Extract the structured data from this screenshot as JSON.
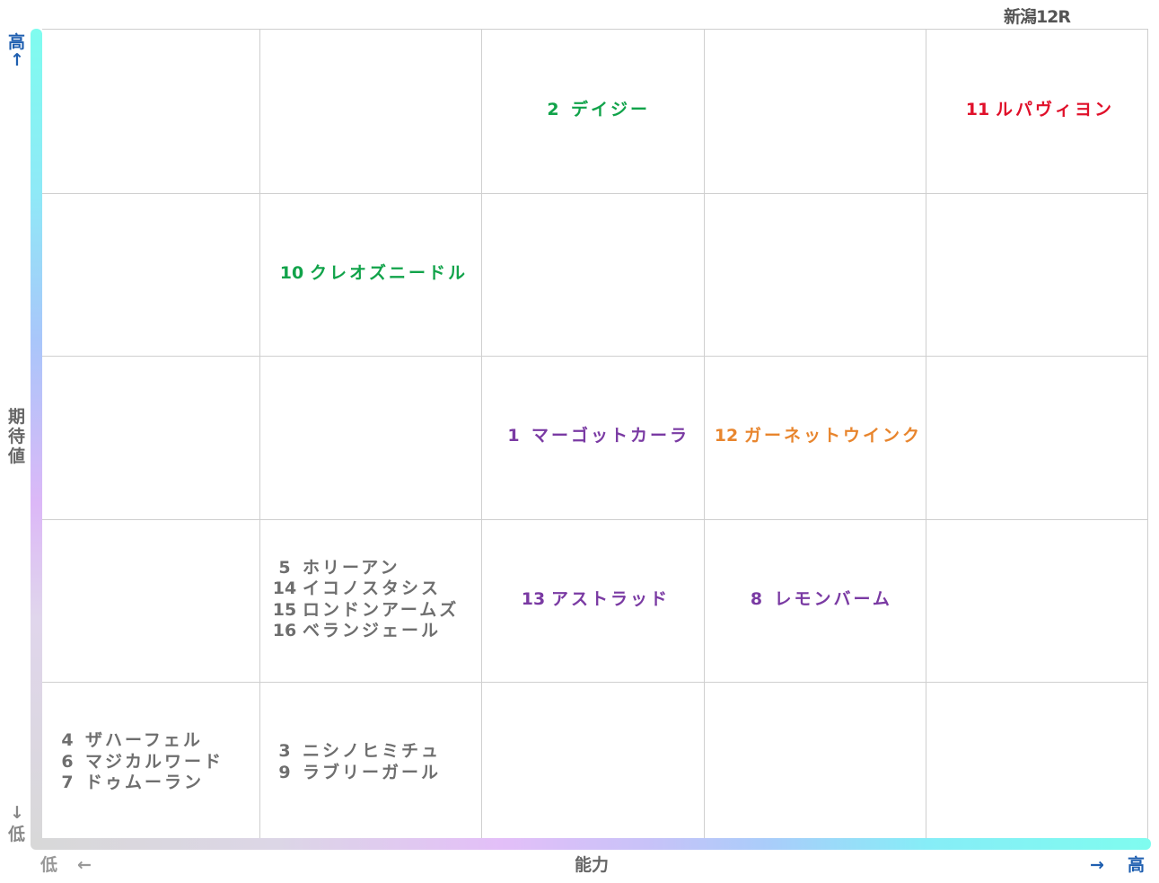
{
  "race": {
    "title": "新潟12R"
  },
  "axes": {
    "y_label": "期待値",
    "y_high": "高",
    "y_high_arrow": "↑",
    "y_low_arrow": "↓",
    "y_low": "低",
    "x_label": "能力",
    "x_low": "低",
    "x_low_arrow": "←",
    "x_high_arrow": "→",
    "x_high": "高"
  },
  "colors": {
    "green": "#11a34a",
    "red": "#e0102a",
    "purple": "#7a3aa3",
    "orange": "#e8852d",
    "gray": "#6e6e6e",
    "axis_accent": "#1f5fb0"
  },
  "cells": [
    {
      "col": 3,
      "row": 1,
      "color": "green",
      "horses": [
        {
          "num": "2",
          "name": "デイジー"
        }
      ]
    },
    {
      "col": 5,
      "row": 1,
      "color": "red",
      "horses": [
        {
          "num": "11",
          "name": "ルパヴィヨン"
        }
      ]
    },
    {
      "col": 2,
      "row": 2,
      "color": "green",
      "horses": [
        {
          "num": "10",
          "name": "クレオズニードル"
        }
      ]
    },
    {
      "col": 3,
      "row": 3,
      "color": "purple",
      "horses": [
        {
          "num": "1",
          "name": "マーゴットカーラ"
        }
      ]
    },
    {
      "col": 4,
      "row": 3,
      "color": "orange",
      "horses": [
        {
          "num": "12",
          "name": "ガーネットウインク"
        }
      ]
    },
    {
      "col": 2,
      "row": 4,
      "color": "gray",
      "horses": [
        {
          "num": "5",
          "name": "ホリーアン"
        },
        {
          "num": "14",
          "name": "イコノスタシス"
        },
        {
          "num": "15",
          "name": "ロンドンアームズ"
        },
        {
          "num": "16",
          "name": "ベランジェール"
        }
      ]
    },
    {
      "col": 3,
      "row": 4,
      "color": "purple",
      "horses": [
        {
          "num": "13",
          "name": "アストラッド"
        }
      ]
    },
    {
      "col": 4,
      "row": 4,
      "color": "purple",
      "horses": [
        {
          "num": "8",
          "name": "レモンバーム"
        }
      ]
    },
    {
      "col": 1,
      "row": 5,
      "color": "gray",
      "horses": [
        {
          "num": "4",
          "name": "ザハーフェル"
        },
        {
          "num": "6",
          "name": "マジカルワード"
        },
        {
          "num": "7",
          "name": "ドゥムーラン"
        }
      ]
    },
    {
      "col": 2,
      "row": 5,
      "color": "gray",
      "horses": [
        {
          "num": "3",
          "name": "ニシノヒミチュ"
        },
        {
          "num": "9",
          "name": "ラブリーガール"
        }
      ]
    }
  ]
}
